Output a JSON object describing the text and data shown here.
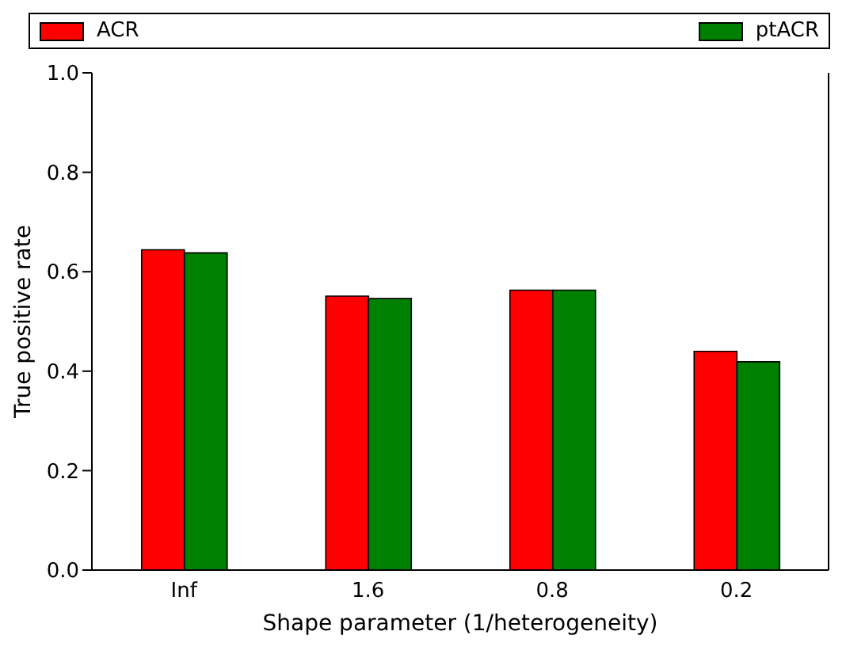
{
  "chart_data": {
    "type": "bar",
    "xlabel": "Shape parameter (1/heterogeneity)",
    "ylabel": "True positive rate",
    "categories": [
      "Inf",
      "1.6",
      "0.8",
      "0.2"
    ],
    "series": [
      {
        "name": "ACR",
        "color": "#ff0000",
        "values": [
          0.644,
          0.551,
          0.563,
          0.44
        ]
      },
      {
        "name": "ptACR",
        "color": "#008000",
        "values": [
          0.638,
          0.546,
          0.563,
          0.419
        ]
      }
    ],
    "ylim": [
      0,
      1
    ],
    "yticks": [
      {
        "value": 0,
        "label": "0.0"
      },
      {
        "value": 0.2,
        "label": "0.2"
      },
      {
        "value": 0.4,
        "label": "0.4"
      },
      {
        "value": 0.6,
        "label": "0.6"
      },
      {
        "value": 0.8,
        "label": "0.8"
      },
      {
        "value": 1,
        "label": "1.0"
      }
    ],
    "grid": false,
    "legend": "top"
  }
}
